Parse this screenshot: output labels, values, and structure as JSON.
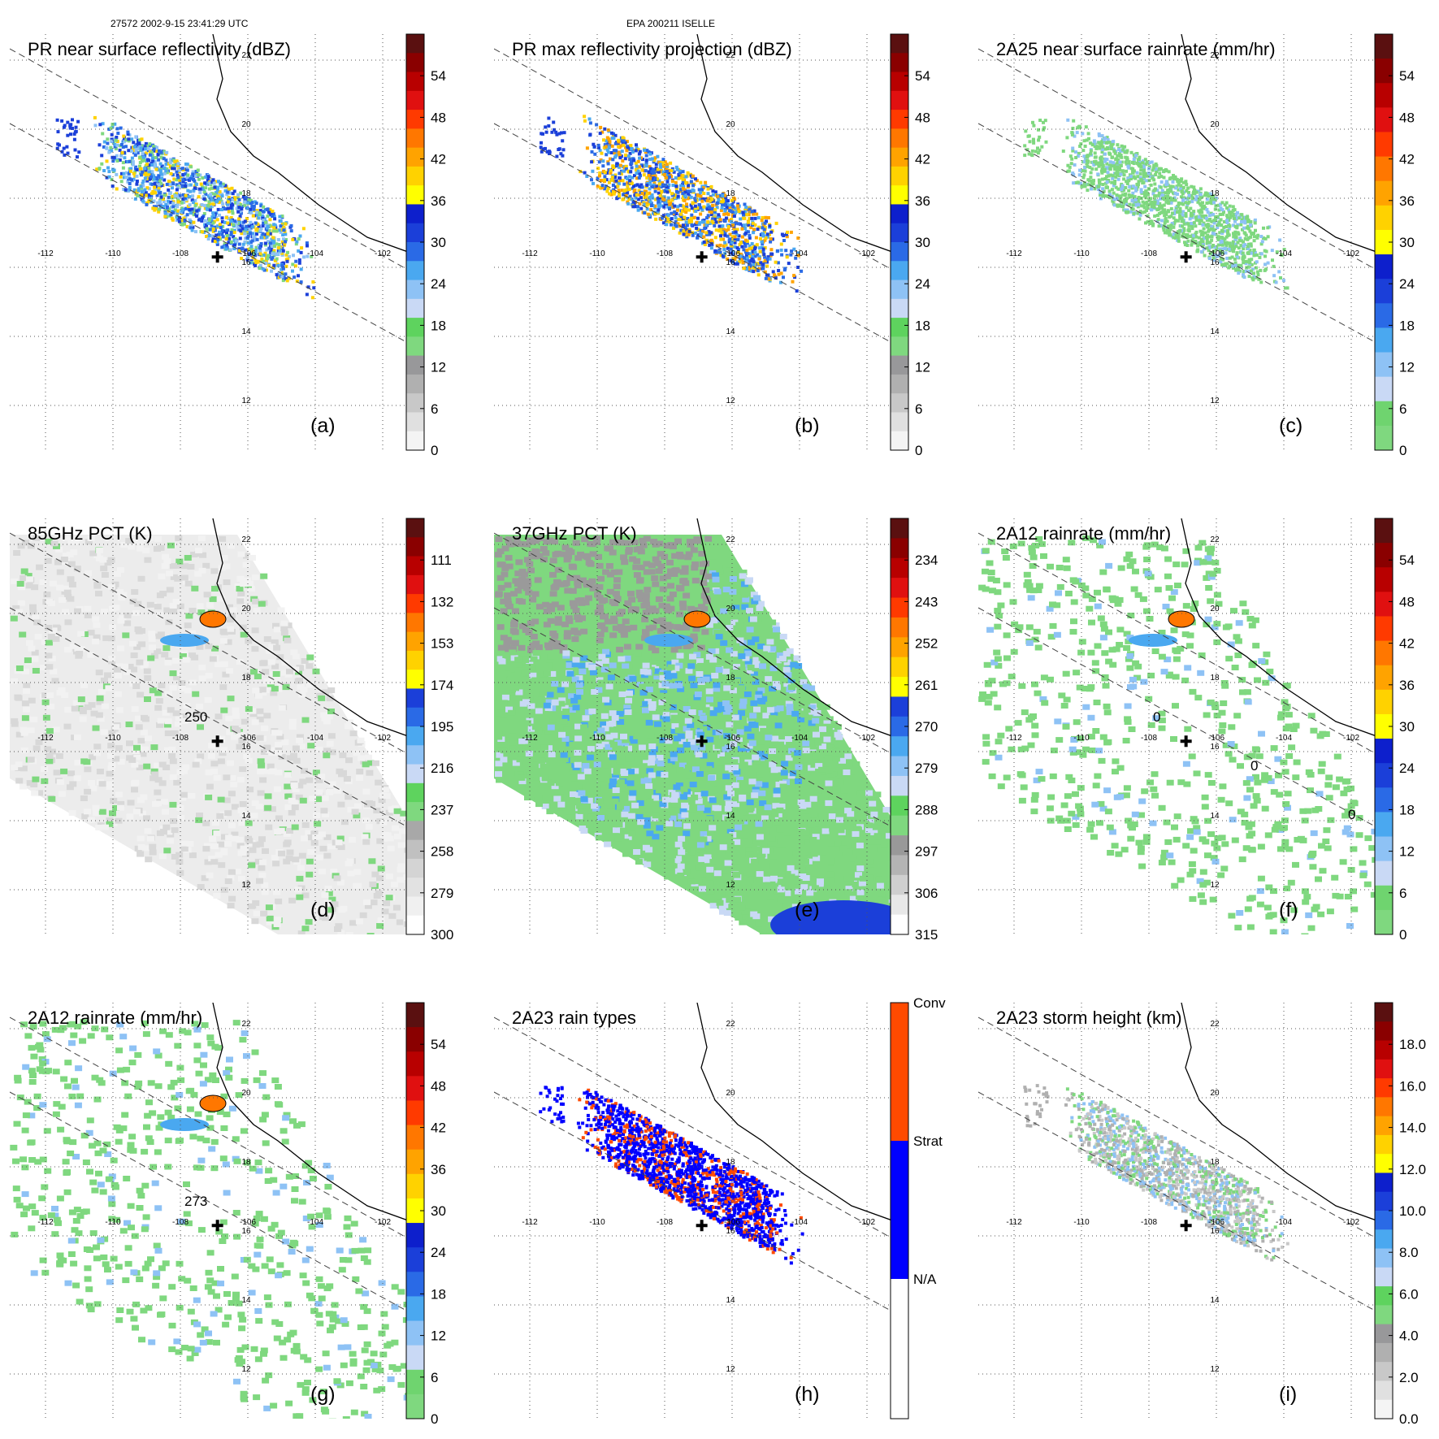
{
  "header": {
    "orbit_time": "27572 2002-9-15 23:41:29 UTC",
    "storm": "EPA 200211 ISELLE"
  },
  "colors": {
    "grid": "#555555",
    "swath": "#444444",
    "coast": "#000000",
    "rain_green": "#7fd87f",
    "center": "#000000"
  },
  "chart_data": [
    {
      "id": "a",
      "type": "heatmap",
      "panel_label": "(a)",
      "title": "PR near surface reflectivity (dBZ)",
      "lon_ticks": [
        "-112",
        "-110",
        "-108",
        "-106",
        "-104",
        "-102"
      ],
      "lat_ticks": [
        "22",
        "20",
        "18",
        "16",
        "14",
        "12"
      ],
      "colorbar": {
        "ticks": [
          "54",
          "48",
          "42",
          "36",
          "30",
          "24",
          "18",
          "12",
          "6",
          "0"
        ],
        "range": [
          0,
          60
        ]
      },
      "colors": [
        "#f4f4f4",
        "#e0e0e0",
        "#c8c8c8",
        "#b0b0b0",
        "#98989a",
        "#7fd87f",
        "#5ed35e",
        "#c9d9f5",
        "#8ec2f5",
        "#4aa8f0",
        "#2a6ae6",
        "#1b3fd9",
        "#0d1fcc",
        "#ffff00",
        "#ffd200",
        "#ffa300",
        "#ff7700",
        "#ff3a00",
        "#e01010",
        "#b80000",
        "#8a0000",
        "#5a1010"
      ],
      "field": "swath",
      "dominant": [
        "#1b3fd9",
        "#4aa8f0",
        "#2a6ae6",
        "#8ec2f5",
        "#ffd200",
        "#7fd87f"
      ],
      "contours": []
    },
    {
      "id": "b",
      "type": "heatmap",
      "panel_label": "(b)",
      "title": "PR max reflectivity projection (dBZ)",
      "lon_ticks": [
        "-112",
        "-110",
        "-108",
        "-106",
        "-104",
        "-102"
      ],
      "lat_ticks": [
        "22",
        "20",
        "18",
        "16",
        "14",
        "12"
      ],
      "colorbar": {
        "ticks": [
          "54",
          "48",
          "42",
          "36",
          "30",
          "24",
          "18",
          "12",
          "6",
          "0"
        ],
        "range": [
          0,
          60
        ]
      },
      "colors": [
        "#f4f4f4",
        "#e0e0e0",
        "#c8c8c8",
        "#b0b0b0",
        "#98989a",
        "#7fd87f",
        "#5ed35e",
        "#c9d9f5",
        "#8ec2f5",
        "#4aa8f0",
        "#2a6ae6",
        "#1b3fd9",
        "#0d1fcc",
        "#ffff00",
        "#ffd200",
        "#ffa300",
        "#ff7700",
        "#ff3a00",
        "#e01010",
        "#b80000",
        "#8a0000",
        "#5a1010"
      ],
      "field": "swath",
      "dominant": [
        "#1b3fd9",
        "#2a6ae6",
        "#4aa8f0",
        "#ffd200",
        "#ffa300"
      ],
      "contours": []
    },
    {
      "id": "c",
      "type": "heatmap",
      "panel_label": "(c)",
      "title": "2A25 near surface rainrate (mm/hr)",
      "lon_ticks": [
        "-112",
        "-110",
        "-108",
        "-106",
        "-104",
        "-102"
      ],
      "lat_ticks": [
        "22",
        "20",
        "18",
        "16",
        "14",
        "12"
      ],
      "colorbar": {
        "ticks": [
          "54",
          "48",
          "42",
          "36",
          "30",
          "24",
          "18",
          "12",
          "6",
          "0"
        ],
        "range": [
          0,
          60
        ]
      },
      "colors": [
        "#7fd87f",
        "#6fd46f",
        "#c9d9f5",
        "#8ec2f5",
        "#4aa8f0",
        "#2a6ae6",
        "#1b3fd9",
        "#0d1fcc",
        "#ffff00",
        "#ffd200",
        "#ffa300",
        "#ff7700",
        "#ff3a00",
        "#e01010",
        "#b80000",
        "#8a0000",
        "#5a1010"
      ],
      "field": "swath",
      "dominant": [
        "#7fd87f",
        "#7fd87f",
        "#7fd87f",
        "#8ec2f5"
      ],
      "contours": []
    },
    {
      "id": "d",
      "type": "heatmap",
      "panel_label": "(d)",
      "title": "85GHz PCT (K)",
      "lon_ticks": [
        "-112",
        "-110",
        "-108",
        "-106",
        "-104",
        "-102"
      ],
      "lat_ticks": [
        "22",
        "20",
        "18",
        "16",
        "14",
        "12"
      ],
      "colorbar": {
        "ticks": [
          "111",
          "132",
          "153",
          "174",
          "195",
          "216",
          "237",
          "258",
          "279",
          "300"
        ],
        "range": [
          90,
          300
        ]
      },
      "colors": [
        "#ffffff",
        "#f0f0f0",
        "#e2e2e2",
        "#d4d4d4",
        "#c0c0c0",
        "#a8a8a8",
        "#7fd87f",
        "#5ed35e",
        "#c9d9f5",
        "#8ec2f5",
        "#4aa8f0",
        "#2a6ae6",
        "#1b3fd9",
        "#ffff00",
        "#ffd200",
        "#ffa300",
        "#ff7700",
        "#ff3a00",
        "#e01010",
        "#b80000",
        "#8a0000",
        "#5a1010"
      ],
      "field": "wide",
      "dominant": [
        "#ececec",
        "#e4e4e4",
        "#dcdcdc",
        "#7fd87f"
      ],
      "contours": [
        "250"
      ]
    },
    {
      "id": "e",
      "type": "heatmap",
      "panel_label": "(e)",
      "title": "37GHz PCT (K)",
      "lon_ticks": [
        "-112",
        "-110",
        "-108",
        "-106",
        "-104",
        "-102"
      ],
      "lat_ticks": [
        "22",
        "20",
        "18",
        "16",
        "14",
        "12"
      ],
      "colorbar": {
        "ticks": [
          "234",
          "243",
          "252",
          "261",
          "270",
          "279",
          "288",
          "297",
          "306",
          "315"
        ],
        "range": [
          225,
          315
        ]
      },
      "colors": [
        "#ffffff",
        "#e8e8e8",
        "#cfcfcf",
        "#b4b4b4",
        "#999999",
        "#7fd87f",
        "#5ed35e",
        "#c9d9f5",
        "#8ec2f5",
        "#4aa8f0",
        "#2a6ae6",
        "#1b3fd9",
        "#ffff00",
        "#ffd200",
        "#ffa300",
        "#ff7700",
        "#ff3a00",
        "#e01010",
        "#b80000",
        "#8a0000",
        "#5a1010"
      ],
      "field": "wide",
      "dominant": [
        "#7fd87f",
        "#8ec2f5",
        "#c9d9f5",
        "#999999",
        "#4aa8f0",
        "#1b3fd9"
      ],
      "contours": []
    },
    {
      "id": "f",
      "type": "heatmap",
      "panel_label": "(f)",
      "title": "2A12 rainrate (mm/hr)",
      "lon_ticks": [
        "-112",
        "-110",
        "-108",
        "-106",
        "-104",
        "-102"
      ],
      "lat_ticks": [
        "22",
        "20",
        "18",
        "16",
        "14",
        "12"
      ],
      "colorbar": {
        "ticks": [
          "54",
          "48",
          "42",
          "36",
          "30",
          "24",
          "18",
          "12",
          "6",
          "0"
        ],
        "range": [
          0,
          60
        ]
      },
      "colors": [
        "#7fd87f",
        "#6fd46f",
        "#c9d9f5",
        "#8ec2f5",
        "#4aa8f0",
        "#2a6ae6",
        "#1b3fd9",
        "#0d1fcc",
        "#ffff00",
        "#ffd200",
        "#ffa300",
        "#ff7700",
        "#ff3a00",
        "#e01010",
        "#b80000",
        "#8a0000",
        "#5a1010"
      ],
      "field": "wide",
      "dominant": [
        "#7fd87f",
        "#7fd87f",
        "#7fd87f",
        "#8ec2f5"
      ],
      "contours": [
        "0",
        "0",
        "0"
      ]
    },
    {
      "id": "g",
      "type": "heatmap",
      "panel_label": "(g)",
      "title": "2A12 rainrate (mm/hr)",
      "lon_ticks": [
        "-112",
        "-110",
        "-108",
        "-106",
        "-104",
        "-102"
      ],
      "lat_ticks": [
        "22",
        "20",
        "18",
        "16",
        "14",
        "12"
      ],
      "colorbar": {
        "ticks": [
          "54",
          "48",
          "42",
          "36",
          "30",
          "24",
          "18",
          "12",
          "6",
          "0"
        ],
        "range": [
          0,
          60
        ]
      },
      "colors": [
        "#7fd87f",
        "#6fd46f",
        "#c9d9f5",
        "#8ec2f5",
        "#4aa8f0",
        "#2a6ae6",
        "#1b3fd9",
        "#0d1fcc",
        "#ffff00",
        "#ffd200",
        "#ffa300",
        "#ff7700",
        "#ff3a00",
        "#e01010",
        "#b80000",
        "#8a0000",
        "#5a1010"
      ],
      "field": "wide",
      "dominant": [
        "#7fd87f",
        "#7fd87f",
        "#7fd87f",
        "#8ec2f5"
      ],
      "contours": [
        "273"
      ]
    },
    {
      "id": "h",
      "type": "heatmap",
      "panel_label": "(h)",
      "title": "2A23 rain types",
      "lon_ticks": [
        "-112",
        "-110",
        "-108",
        "-106",
        "-104",
        "-102"
      ],
      "lat_ticks": [
        "22",
        "20",
        "18",
        "16",
        "14",
        "12"
      ],
      "colorbar": {
        "ticks": [
          "Conv",
          "Strat",
          "N/A"
        ],
        "range": [
          0,
          3
        ],
        "categorical": true
      },
      "colors": [
        "#ffffff",
        "#0000ff",
        "#ff4a00"
      ],
      "field": "swath",
      "dominant": [
        "#0000ff",
        "#0000ff",
        "#0000ff",
        "#ff4a00"
      ],
      "contours": []
    },
    {
      "id": "i",
      "type": "heatmap",
      "panel_label": "(i)",
      "title": "2A23 storm height (km)",
      "lon_ticks": [
        "-112",
        "-110",
        "-108",
        "-106",
        "-104",
        "-102"
      ],
      "lat_ticks": [
        "22",
        "20",
        "18",
        "16",
        "14",
        "12"
      ],
      "colorbar": {
        "ticks": [
          "18.0",
          "16.0",
          "14.0",
          "12.0",
          "10.0",
          "8.0",
          "6.0",
          "4.0",
          "2.0",
          "0.0"
        ],
        "range": [
          0,
          20
        ]
      },
      "colors": [
        "#f4f4f4",
        "#e0e0e0",
        "#c8c8c8",
        "#b0b0b0",
        "#98989a",
        "#7fd87f",
        "#5ed35e",
        "#c9d9f5",
        "#8ec2f5",
        "#4aa8f0",
        "#2a6ae6",
        "#1b3fd9",
        "#0d1fcc",
        "#ffff00",
        "#ffd200",
        "#ffa300",
        "#ff7700",
        "#ff3a00",
        "#e01010",
        "#b80000",
        "#8a0000",
        "#5a1010"
      ],
      "field": "swath",
      "dominant": [
        "#b0b0b0",
        "#7fd87f",
        "#8ec2f5",
        "#c8c8c8"
      ],
      "contours": []
    }
  ]
}
